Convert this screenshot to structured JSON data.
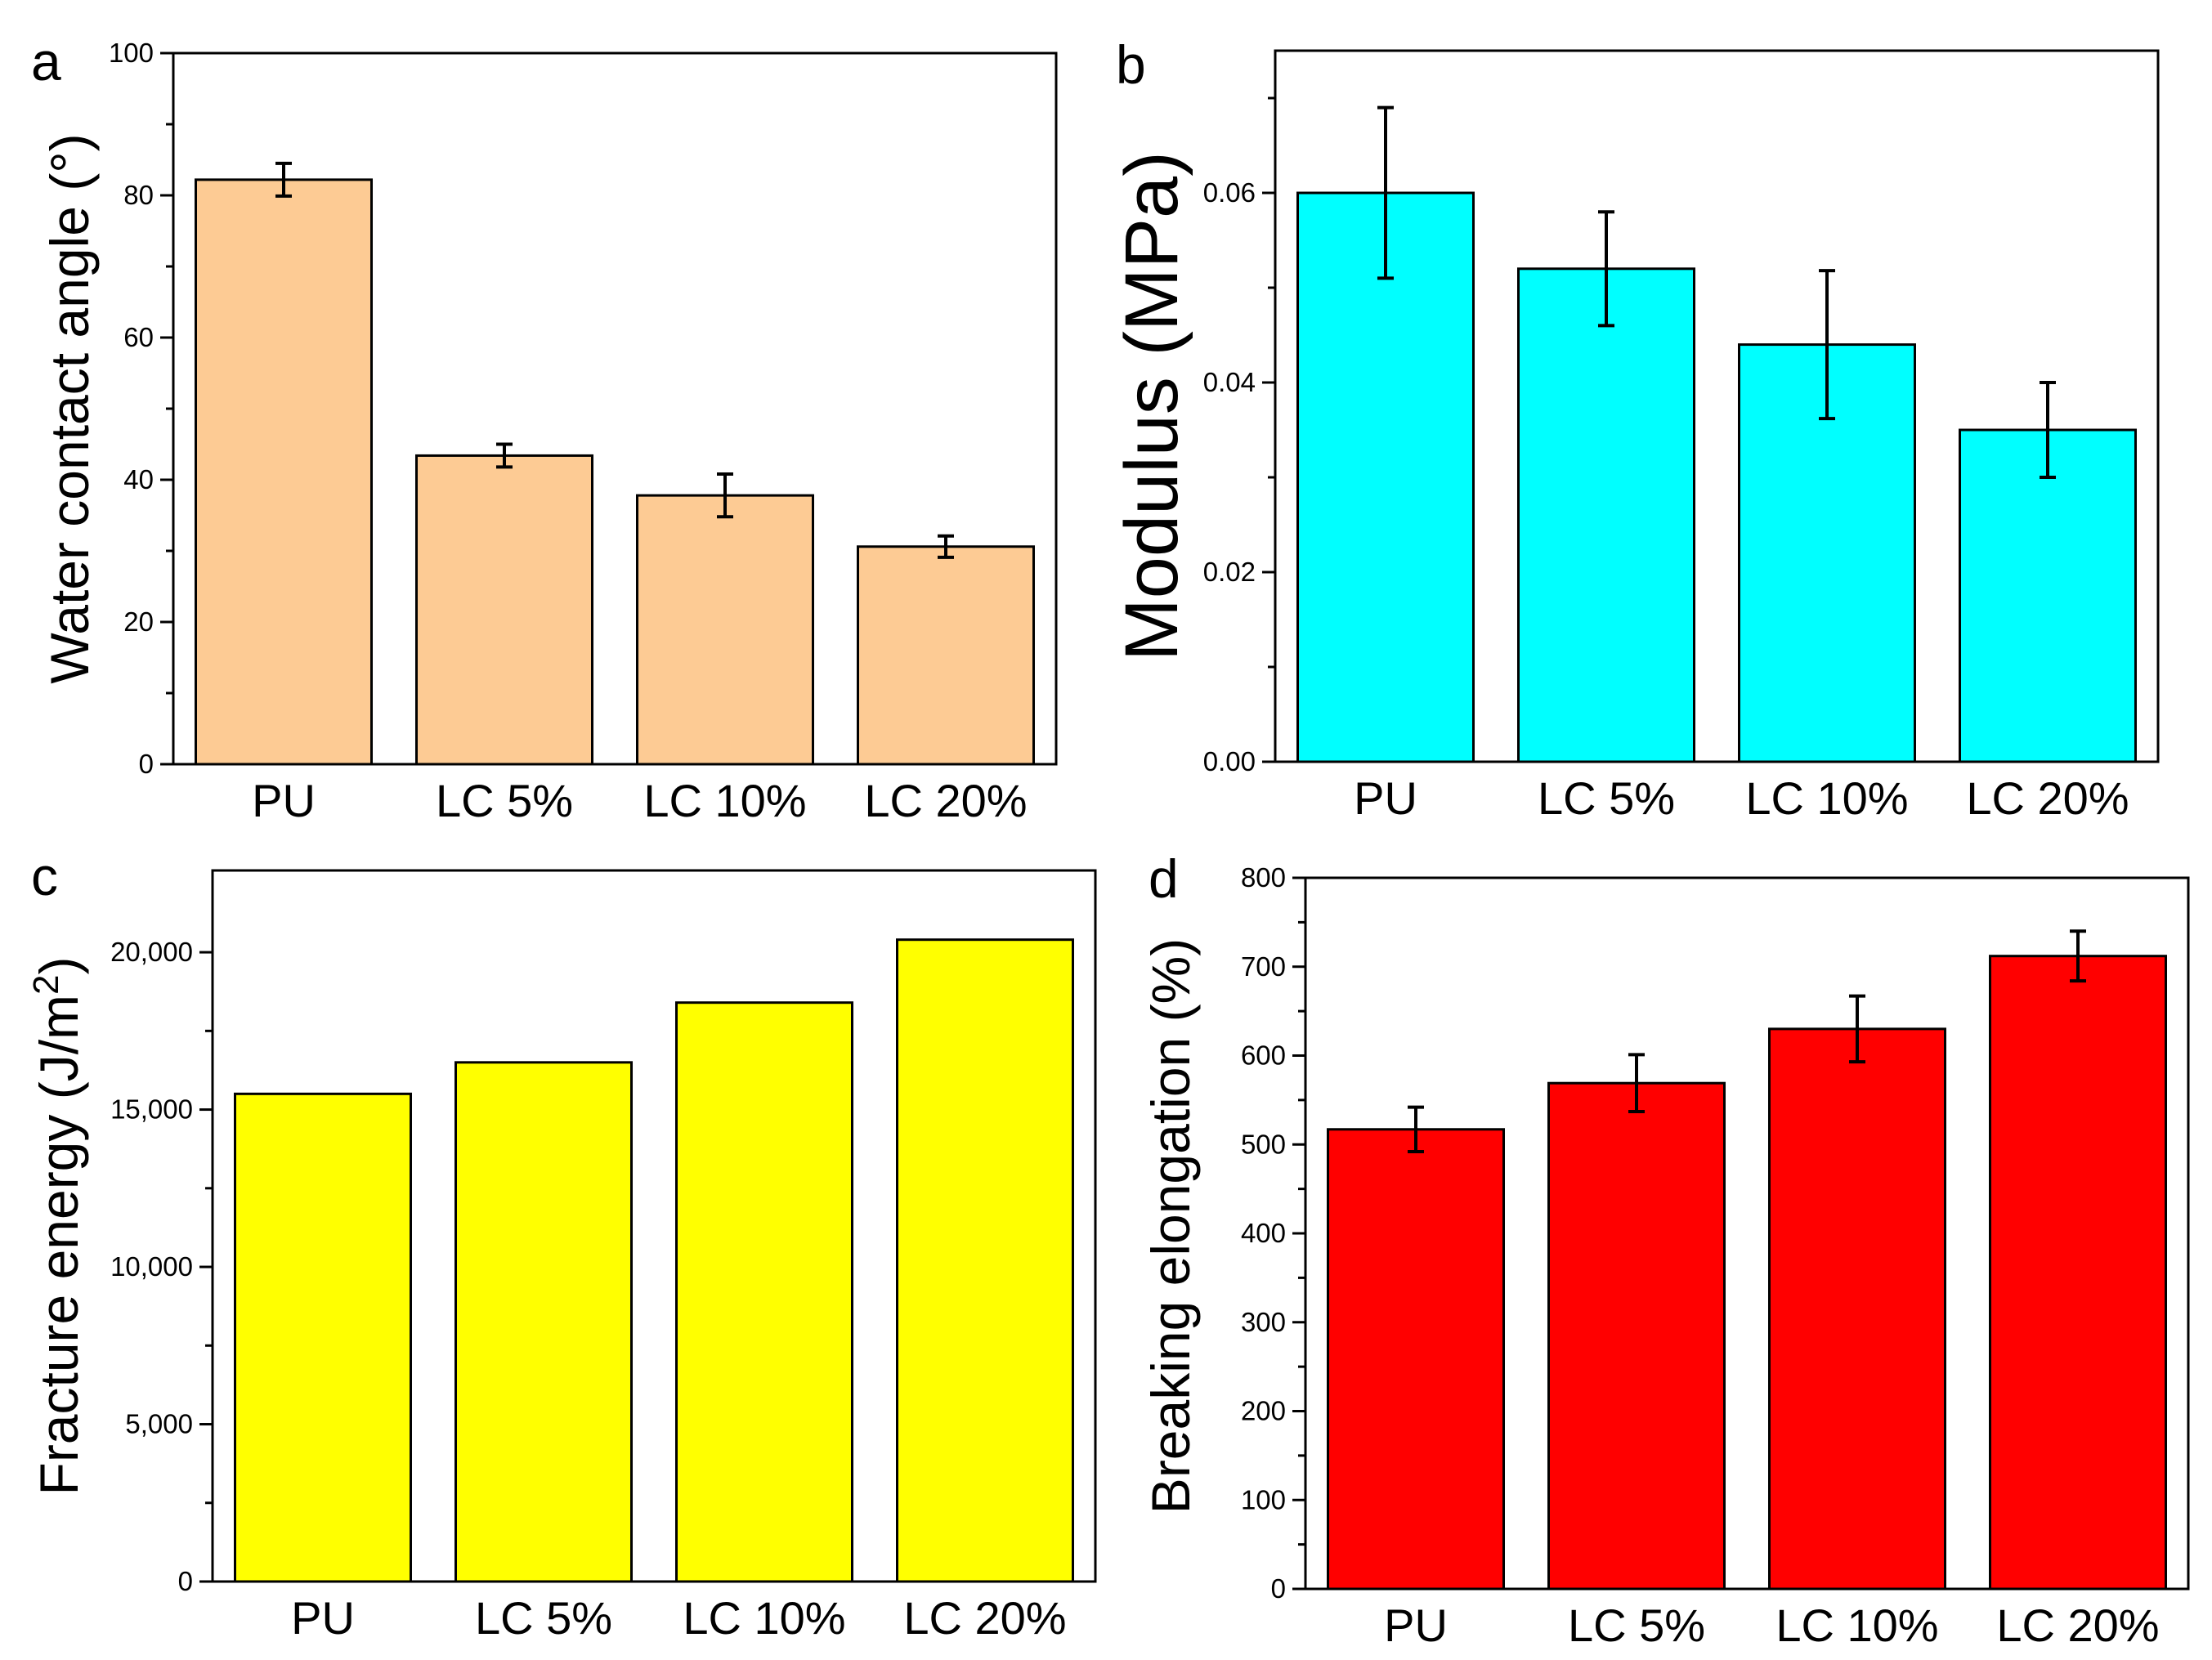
{
  "chart_data": [
    {
      "panel": "a",
      "type": "bar",
      "title": "",
      "xlabel": "",
      "ylabel": "Water contact angle (°)",
      "categories": [
        "PU",
        "LC 5%",
        "LC 10%",
        "LC 20%"
      ],
      "values": [
        82.2,
        43.4,
        37.8,
        30.6
      ],
      "errors": [
        2.3,
        1.6,
        3.0,
        1.5
      ],
      "ylim": [
        0,
        100
      ],
      "yticks": [
        0,
        20,
        40,
        60,
        80,
        100
      ],
      "ytick_labels": [
        "0",
        "20",
        "40",
        "60",
        "80",
        "100"
      ],
      "minor_yticks": [
        10,
        30,
        50,
        70,
        90
      ],
      "color": "#FDCB94"
    },
    {
      "panel": "b",
      "type": "bar",
      "title": "",
      "xlabel": "",
      "ylabel": "Modulus (MPa)",
      "categories": [
        "PU",
        "LC 5%",
        "LC 10%",
        "LC 20%"
      ],
      "values": [
        0.06,
        0.052,
        0.044,
        0.035
      ],
      "errors": [
        0.009,
        0.006,
        0.0078,
        0.005
      ],
      "ylim": [
        0,
        0.075
      ],
      "yticks": [
        0,
        0.02,
        0.04,
        0.06
      ],
      "ytick_labels": [
        "0.00",
        "0.02",
        "0.04",
        "0.06"
      ],
      "minor_yticks": [
        0.01,
        0.03,
        0.05,
        0.07
      ],
      "color": "#00FFFF"
    },
    {
      "panel": "c",
      "type": "bar",
      "title": "",
      "xlabel": "",
      "ylabel": "Fracture energy (J/m",
      "ylabel_sup": "2",
      "ylabel_end": ")",
      "categories": [
        "PU",
        "LC 5%",
        "LC 10%",
        "LC 20%"
      ],
      "values": [
        15500,
        16500,
        18400,
        20400
      ],
      "errors": [],
      "ylim": [
        0,
        22600
      ],
      "yticks": [
        0,
        5000,
        10000,
        15000,
        20000
      ],
      "ytick_labels": [
        "0",
        "5,000",
        "10,000",
        "15,000",
        "20,000"
      ],
      "minor_yticks": [
        2500,
        7500,
        12500,
        17500
      ],
      "color": "#FFFF00"
    },
    {
      "panel": "d",
      "type": "bar",
      "title": "",
      "xlabel": "",
      "ylabel": "Breaking elongation (%)",
      "categories": [
        "PU",
        "LC 5%",
        "LC 10%",
        "LC 20%"
      ],
      "values": [
        517,
        569,
        630,
        712
      ],
      "errors": [
        25,
        32,
        37,
        28
      ],
      "ylim": [
        0,
        800
      ],
      "yticks": [
        0,
        100,
        200,
        300,
        400,
        500,
        600,
        700,
        800
      ],
      "ytick_labels": [
        "0",
        "100",
        "200",
        "300",
        "400",
        "500",
        "600",
        "700",
        "800"
      ],
      "minor_yticks": [
        50,
        150,
        250,
        350,
        450,
        550,
        650,
        750
      ],
      "color": "#FF0000"
    }
  ]
}
